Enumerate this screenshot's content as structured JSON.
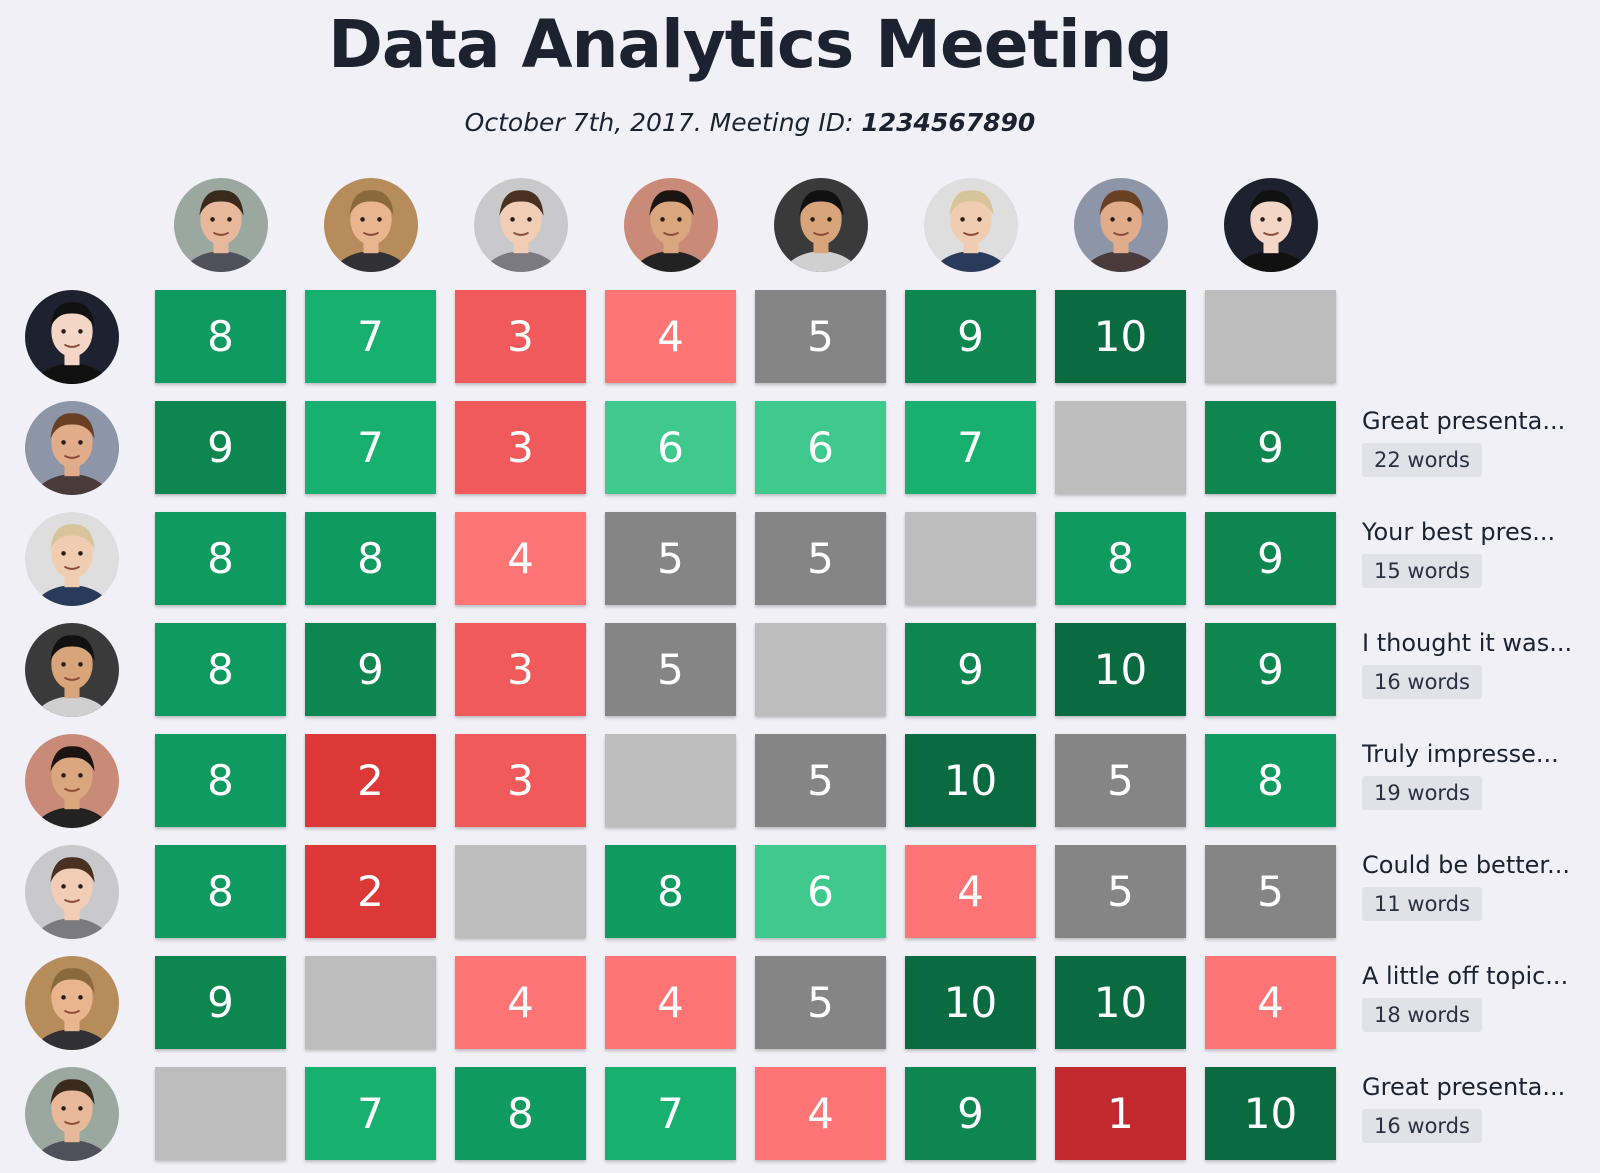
{
  "header": {
    "title": "Data Analytics Meeting",
    "subtitle_prefix": "October 7th, 2017. Meeting ID: ",
    "meeting_id": "1234567890"
  },
  "colors": {
    "empty": "#bdbdbd",
    "neutral": "#858585",
    "scale": {
      "1": "#c1292e",
      "2": "#dd3838",
      "3": "#f05a5a",
      "4": "#ff7474",
      "5": "#858585",
      "6": "#3fc98c",
      "7": "#18b06e",
      "8": "#0f9a5f",
      "9": "#0d8650",
      "10": "#0b6b40"
    }
  },
  "people": [
    {
      "name": "person-1",
      "skin": "#e8b89a",
      "hair": "#3a2a1e",
      "bg": "#9aa8a0",
      "shirt": "#50505a"
    },
    {
      "name": "person-2",
      "skin": "#e9b58f",
      "hair": "#8a6a3c",
      "bg": "#b58c5a",
      "shirt": "#303035"
    },
    {
      "name": "person-3",
      "skin": "#f2cdb5",
      "hair": "#4a3020",
      "bg": "#c9c9cc",
      "shirt": "#7a7a80"
    },
    {
      "name": "person-4",
      "skin": "#d9a67e",
      "hair": "#1c1410",
      "bg": "#c98a78",
      "shirt": "#222222"
    },
    {
      "name": "person-5",
      "skin": "#d8a47a",
      "hair": "#111111",
      "bg": "#3a3a3a",
      "shirt": "#d0d0d0"
    },
    {
      "name": "person-6",
      "skin": "#f0cdb0",
      "hair": "#d8c49a",
      "bg": "#dedede",
      "shirt": "#2a3a5a"
    },
    {
      "name": "person-7",
      "skin": "#e0ac8a",
      "hair": "#6a4024",
      "bg": "#8c96a8",
      "shirt": "#4a3a3a"
    },
    {
      "name": "person-8",
      "skin": "#f3d6c6",
      "hair": "#111111",
      "bg": "#1e2230",
      "shirt": "#111111"
    }
  ],
  "rows": [
    {
      "person": 7,
      "scores": [
        "8",
        "7",
        "3",
        "4",
        "5",
        "9",
        "10",
        ""
      ],
      "comment": null
    },
    {
      "person": 6,
      "scores": [
        "9",
        "7",
        "3",
        "6",
        "6",
        "7",
        "",
        "9"
      ],
      "comment": {
        "text": "Great presenta...",
        "words": "22 words"
      }
    },
    {
      "person": 5,
      "scores": [
        "8",
        "8",
        "4",
        "5",
        "5",
        "",
        "8",
        "9"
      ],
      "comment": {
        "text": "Your best pres...",
        "words": "15 words"
      }
    },
    {
      "person": 4,
      "scores": [
        "8",
        "9",
        "3",
        "5",
        "",
        "9",
        "10",
        "9"
      ],
      "comment": {
        "text": "I thought it was...",
        "words": "16 words"
      }
    },
    {
      "person": 3,
      "scores": [
        "8",
        "2",
        "3",
        "",
        "5",
        "10",
        "5",
        "8"
      ],
      "comment": {
        "text": "Truly impresse...",
        "words": "19 words"
      }
    },
    {
      "person": 2,
      "scores": [
        "8",
        "2",
        "",
        "8",
        "6",
        "4",
        "5",
        "5"
      ],
      "comment": {
        "text": "Could be better...",
        "words": "11 words"
      }
    },
    {
      "person": 1,
      "scores": [
        "9",
        "",
        "4",
        "4",
        "5",
        "10",
        "10",
        "4"
      ],
      "comment": {
        "text": "A little off topic...",
        "words": "18 words"
      }
    },
    {
      "person": 0,
      "scores": [
        "",
        "7",
        "8",
        "7",
        "4",
        "9",
        "1",
        "10"
      ],
      "comment": {
        "text": "Great presenta...",
        "words": "16 words"
      }
    }
  ]
}
